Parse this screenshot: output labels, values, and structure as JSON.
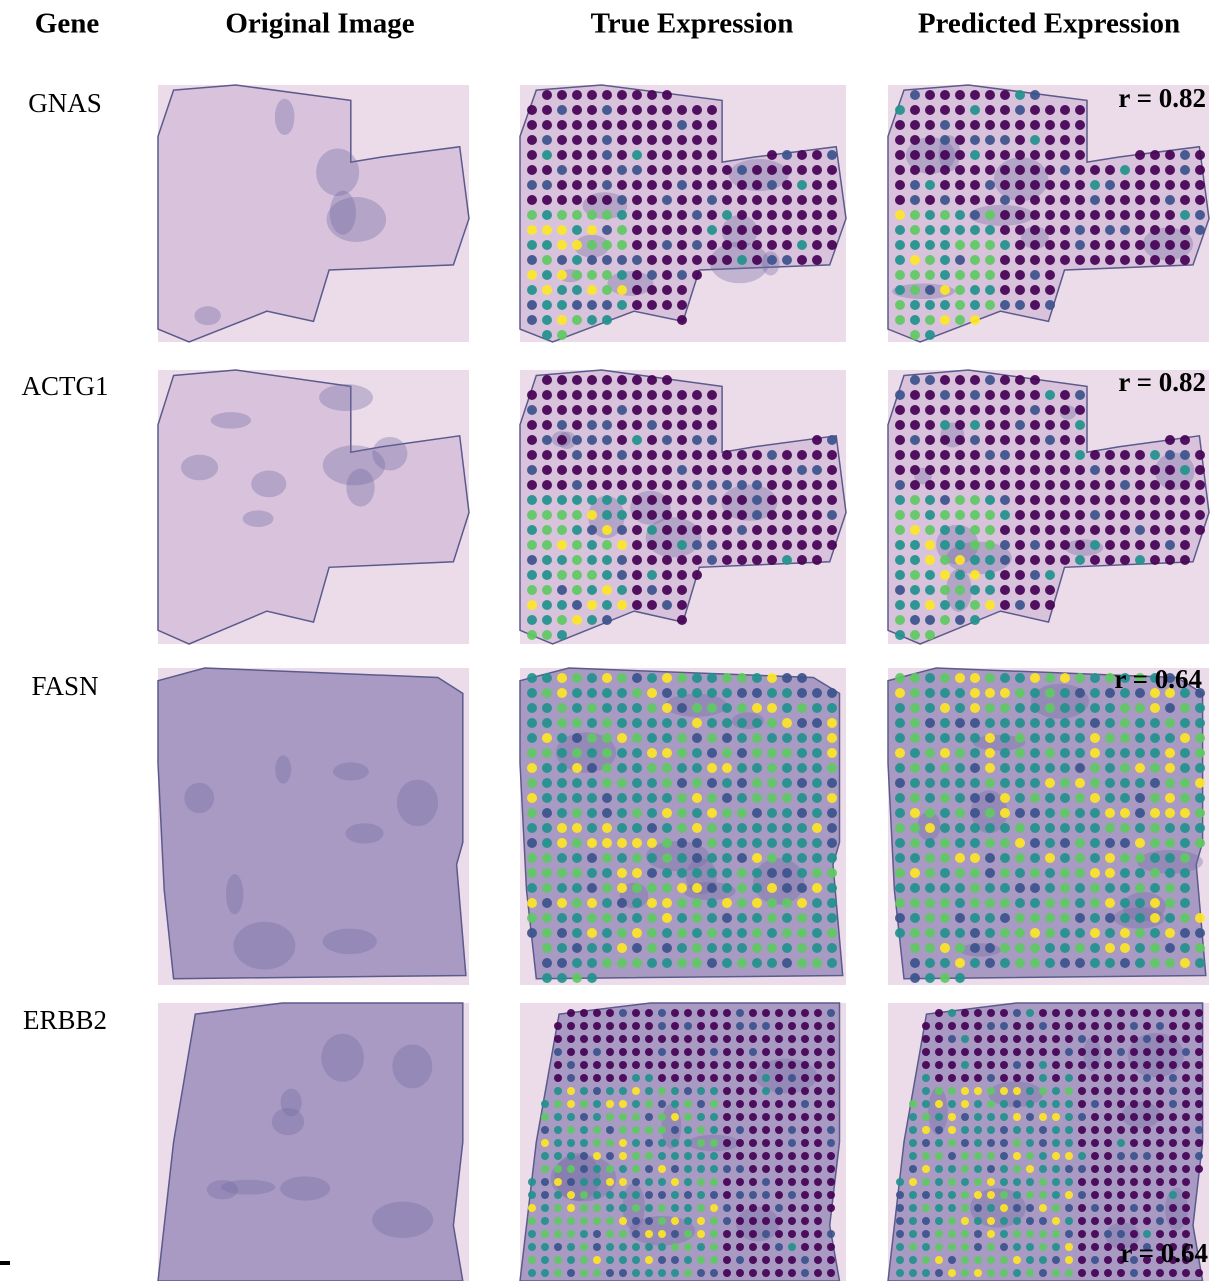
{
  "header": {
    "columns": [
      "Gene",
      "Original Image",
      "True Expression",
      "Predicted Expression"
    ]
  },
  "rows": [
    {
      "gene": "GNAS",
      "correlation": "r = 0.82"
    },
    {
      "gene": "ACTG1",
      "correlation": "r = 0.82"
    },
    {
      "gene": "FASN",
      "correlation": "r = 0.64"
    },
    {
      "gene": "ERBB2",
      "correlation": "r = 0.64"
    }
  ]
}
